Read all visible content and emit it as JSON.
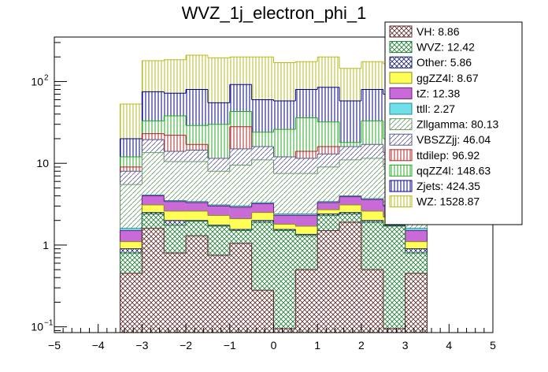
{
  "chart_data": {
    "type": "bar",
    "subtype": "stacked-histogram",
    "title": "WVZ_1j_electron_phi_1",
    "xlabel": "",
    "ylabel": "",
    "xlim": [
      -5,
      5
    ],
    "ylim": [
      0.085,
      350
    ],
    "ylog": true,
    "legend_position": "top-right",
    "bin_edges": [
      -3.5,
      -3.0,
      -2.5,
      -2.0,
      -1.5,
      -1.0,
      -0.5,
      0.0,
      0.5,
      1.0,
      1.5,
      2.0,
      2.5,
      3.0,
      3.5
    ],
    "x_ticks": [
      {
        "value": -5,
        "label": "−5"
      },
      {
        "value": -4,
        "label": "−4"
      },
      {
        "value": -3,
        "label": "−3"
      },
      {
        "value": -2,
        "label": "−2"
      },
      {
        "value": -1,
        "label": "−1"
      },
      {
        "value": 0,
        "label": "0"
      },
      {
        "value": 1,
        "label": "1"
      },
      {
        "value": 2,
        "label": "2"
      },
      {
        "value": 3,
        "label": "3"
      },
      {
        "value": 4,
        "label": "4"
      },
      {
        "value": 5,
        "label": "5"
      }
    ],
    "y_ticks": [
      {
        "value": 0.1,
        "label": "10",
        "exp": "−1"
      },
      {
        "value": 1,
        "label": "1"
      },
      {
        "value": 10,
        "label": "10"
      },
      {
        "value": 100,
        "label": "10",
        "exp": "2"
      }
    ],
    "cumulative_note": "stacked totals per bin (bottom to top)",
    "series": [
      {
        "name": "VH",
        "legend": "VH: 8.86",
        "fill": "#a87c7c",
        "hatch": "cross",
        "line": "#5a2b2b",
        "cum": [
          0.45,
          1.6,
          0.8,
          1.3,
          0.75,
          1.05,
          0.28,
          0.095,
          0.5,
          1.5,
          1.9,
          0.5,
          0.095,
          0.45
        ]
      },
      {
        "name": "WVZ",
        "legend": "WVZ: 12.42",
        "fill": "#55d979",
        "hatch": "cross",
        "line": "#1f7a36",
        "cum": [
          0.8,
          2.4,
          1.75,
          1.95,
          1.7,
          1.5,
          1.9,
          1.5,
          1.3,
          2.3,
          2.4,
          1.9,
          1.7,
          0.8
        ]
      },
      {
        "name": "Other",
        "legend": "Other: 5.86",
        "fill": "#3b46a8",
        "hatch": "cross",
        "line": "#1a1f6b",
        "cum": [
          0.9,
          2.5,
          2.0,
          2.0,
          1.75,
          1.55,
          2.0,
          1.55,
          1.35,
          2.4,
          2.5,
          2.0,
          1.75,
          0.9
        ]
      },
      {
        "name": "ggZZ4l",
        "legend": "ggZZ4l: 8.67",
        "fill": "#ffff55",
        "hatch": "solid",
        "line": "#8a8a20",
        "cum": [
          1.1,
          3.1,
          2.6,
          2.6,
          2.3,
          2.1,
          2.5,
          1.8,
          1.7,
          2.7,
          3.1,
          2.6,
          2.2,
          1.1
        ]
      },
      {
        "name": "tZ",
        "legend": "tZ: 12.38",
        "fill": "#c86bd9",
        "hatch": "solid",
        "line": "#6e1f7e",
        "cum": [
          1.5,
          4.0,
          3.4,
          3.3,
          3.0,
          2.9,
          3.2,
          2.3,
          2.3,
          3.3,
          3.9,
          3.6,
          3.0,
          1.5
        ]
      },
      {
        "name": "ttll",
        "legend": "ttll: 2.27",
        "fill": "#6fe0ea",
        "hatch": "solid",
        "line": "#2a8a94",
        "cum": [
          1.6,
          4.1,
          3.5,
          3.4,
          3.1,
          3.0,
          3.3,
          2.4,
          2.4,
          3.4,
          4.0,
          3.7,
          3.1,
          1.6
        ]
      },
      {
        "name": "Zllgamma",
        "legend": "Zllgamma: 80.13",
        "fill": "#b8ddb8",
        "hatch": "diag",
        "line": "#6a9a6a",
        "cum": [
          5.5,
          13.5,
          10.5,
          10.5,
          8.0,
          9.5,
          11.0,
          7.5,
          7.5,
          9.0,
          11.0,
          11.5,
          9.0,
          5.5
        ]
      },
      {
        "name": "VBSZZjj",
        "legend": "VBSZZjj: 46.04",
        "fill": "#b6b6d6",
        "hatch": "diag",
        "line": "#5a5a8a",
        "cum": [
          8.0,
          19.5,
          14.0,
          14.5,
          11.5,
          15.0,
          16.0,
          12.0,
          11.5,
          13.0,
          16.0,
          17.0,
          13.5,
          8.0
        ]
      },
      {
        "name": "ttdilep",
        "legend": "ttdilep: 96.92",
        "fill": "#f0a0a0",
        "hatch": "vlines",
        "line": "#b22222",
        "cum": [
          9.0,
          23.0,
          22.0,
          17.0,
          4.5,
          28.0,
          9.5,
          11.5,
          14.0,
          16.0,
          9.0,
          15.5,
          8.5,
          9.0
        ]
      },
      {
        "name": "qqZZ4l",
        "legend": "qqZZ4l: 148.63",
        "fill": "#99ee99",
        "hatch": "vlines",
        "line": "#22aa22",
        "cum": [
          12.0,
          33.0,
          38.0,
          29.0,
          30.0,
          43.0,
          24.0,
          26.0,
          36.0,
          32.0,
          18.0,
          33.0,
          20.0,
          12.0
        ]
      },
      {
        "name": "Zjets",
        "legend": "Zjets: 424.35",
        "fill": "#8a8ad6",
        "hatch": "vlines",
        "line": "#00008b",
        "cum": [
          20.0,
          75.0,
          72.0,
          80.0,
          55.0,
          92.0,
          60.0,
          58.0,
          80.0,
          85.0,
          58.0,
          80.0,
          70.0,
          20.0
        ]
      },
      {
        "name": "WZ",
        "legend": "WZ: 1528.87",
        "fill": "#ffff66",
        "hatch": "vlines",
        "line": "#b8b820",
        "cum": [
          53.0,
          180.0,
          185.0,
          210.0,
          195.0,
          200.0,
          200.0,
          170.0,
          175.0,
          200.0,
          145.0,
          175.0,
          165.0,
          53.0
        ]
      }
    ]
  }
}
